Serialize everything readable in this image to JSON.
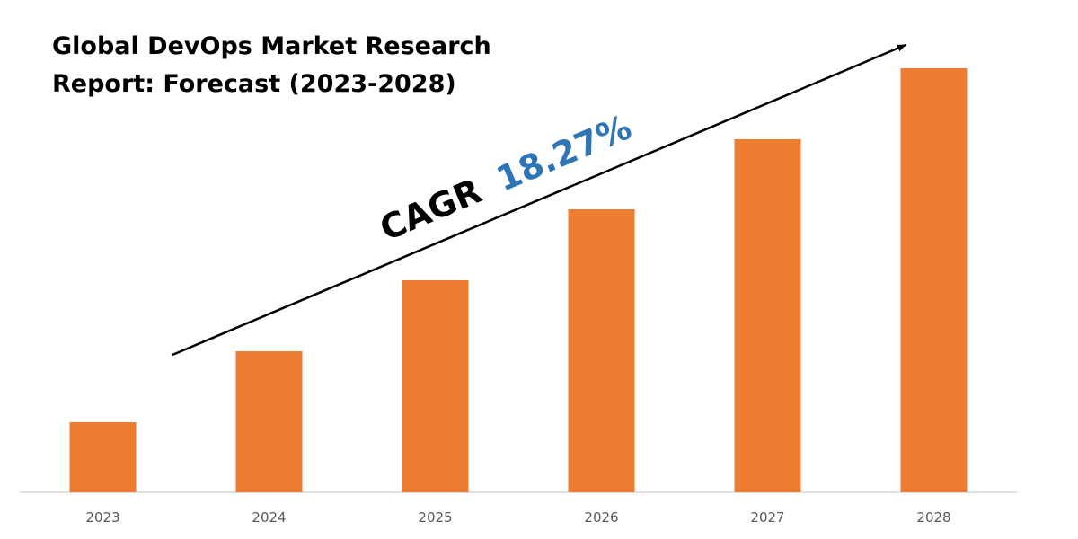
{
  "chart_data": {
    "type": "bar",
    "title": [
      "Global DevOps Market Research",
      "Report: Forecast (2023-2028)"
    ],
    "annotation": {
      "label": "CAGR",
      "value": "18.27%"
    },
    "categories": [
      "2023",
      "2024",
      "2025",
      "2026",
      "2027",
      "2028"
    ],
    "values": [
      78,
      157,
      236,
      315,
      393,
      472
    ],
    "color": "#ed7d31",
    "ylim": [
      0,
      500
    ]
  }
}
